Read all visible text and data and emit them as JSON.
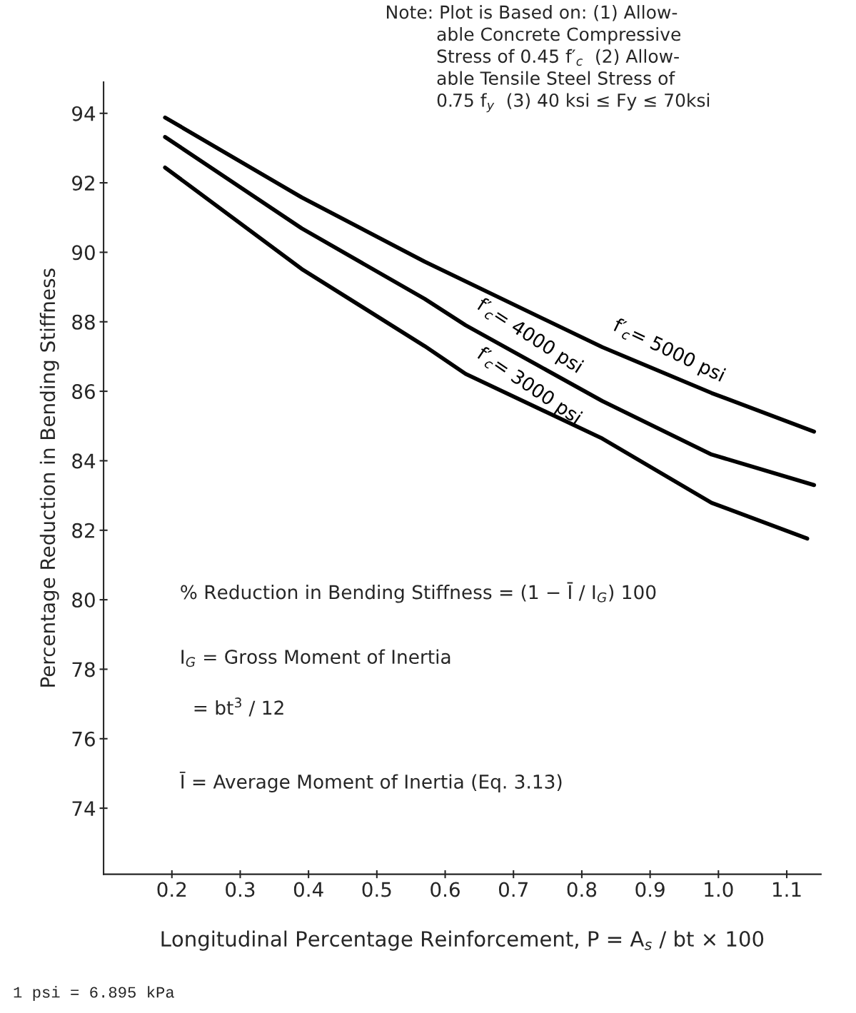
{
  "chart_data": {
    "type": "line",
    "xlabel": "Longitudinal Percentage Reinforcement, P = A$_{s}$ / bt × 100",
    "ylabel": "Percentage Reduction in Bending Stiffness",
    "series": [
      {
        "name": "f′$_{c}$= 5000 psi",
        "color": "#000000",
        "x": [
          0.19,
          0.39,
          0.57,
          0.83,
          0.99,
          1.14
        ],
        "values": [
          93.88,
          91.58,
          89.73,
          87.27,
          85.95,
          84.84
        ]
      },
      {
        "name": "f′$_{c}$= 4000 psi",
        "color": "#000000",
        "x": [
          0.19,
          0.39,
          0.57,
          0.63,
          0.83,
          0.99,
          1.14
        ],
        "values": [
          93.32,
          90.69,
          88.66,
          87.9,
          85.72,
          84.18,
          83.3
        ]
      },
      {
        "name": "f′$_{c}$= 3000 psi",
        "color": "#000000",
        "x": [
          0.19,
          0.39,
          0.57,
          0.63,
          0.83,
          0.99,
          1.13
        ],
        "values": [
          92.44,
          89.52,
          87.3,
          86.5,
          84.64,
          82.79,
          81.76
        ]
      }
    ],
    "xlim": [
      0.1,
      1.15
    ],
    "ylim": [
      72.1,
      94.9
    ],
    "xticks": [
      0.2,
      0.3,
      0.4,
      0.5,
      0.6,
      0.7,
      0.8,
      0.9,
      {
        "value": 1.0,
        "label": "1.0"
      },
      1.1
    ],
    "yticks": [
      74,
      76,
      78,
      80,
      82,
      84,
      86,
      88,
      90,
      92,
      94
    ],
    "grid": false,
    "legend": false,
    "marker": "none",
    "line_style": "solid",
    "annotations": [
      "Note: Plot is Based on: (1) Allow-\n         able Concrete Compressive\n         Stress of 0.45 f′$_{c}$  (2) Allow-\n         able Tensile Steel Stress of\n         0.75 f$_{y}$  (3) 40 ksi ≤ Fy ≤ 70ksi",
      "% Reduction in Bending Stiffness = (1 − Ī / I$_{G}$) 100",
      "I$_{G}$ = Gross Moment of Inertia",
      "= bt$^{3}$ / 12",
      "Ī = Average Moment of Inertia (Eq. 3.13)",
      "1 psi = 6.895 kPa"
    ]
  }
}
